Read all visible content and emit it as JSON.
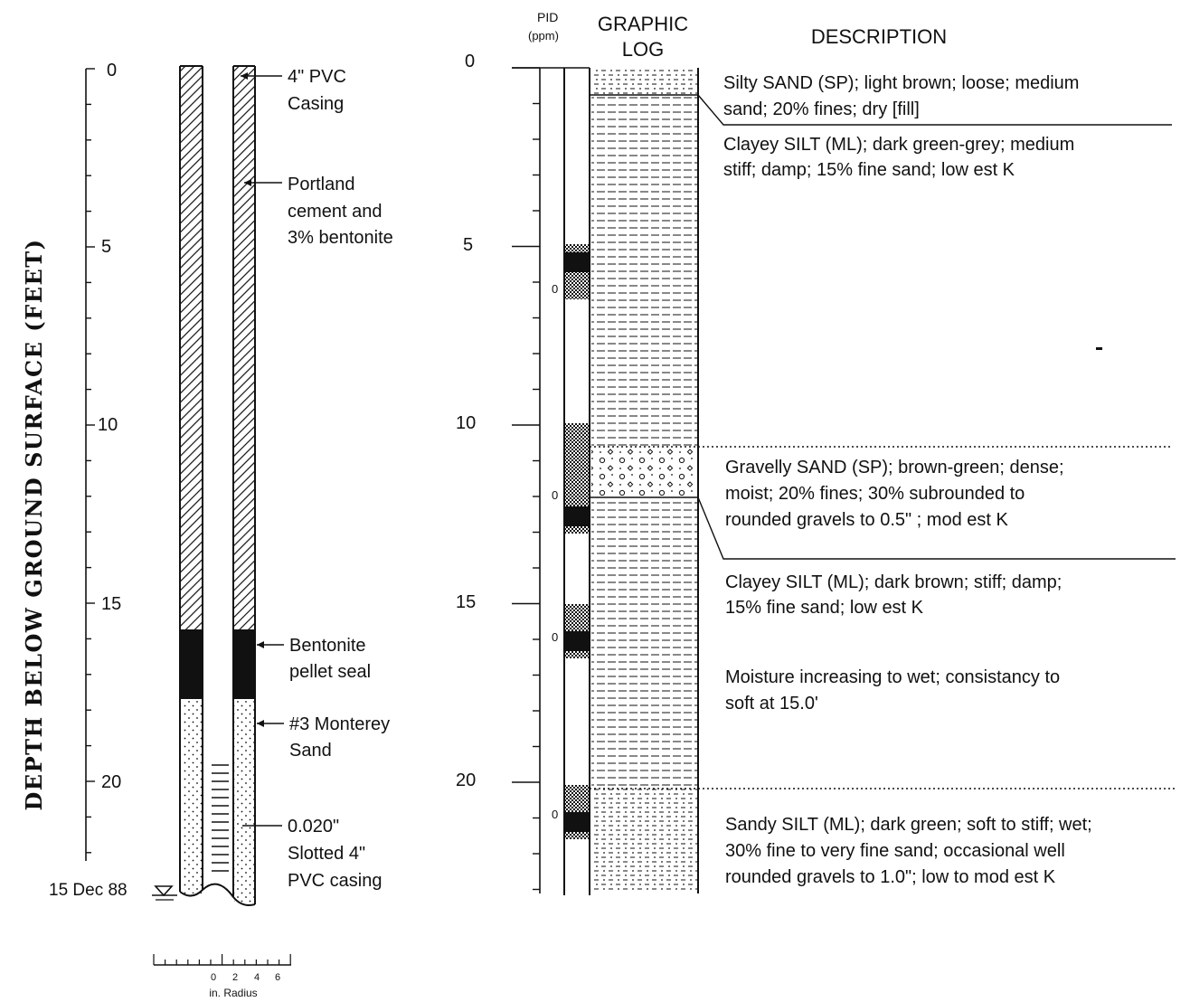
{
  "vertical_title": "DEPTH BELOW GROUND SURFACE (FEET)",
  "depth_ticks": [
    "0",
    "5",
    "10",
    "15",
    "20"
  ],
  "water_level_label": "15 Dec 88",
  "well_labels": [
    {
      "lines": [
        "4\" PVC",
        "Casing"
      ]
    },
    {
      "lines": [
        "Portland",
        "cement and",
        "3% bentonite"
      ]
    },
    {
      "lines": [
        "Bentonite",
        "pellet seal"
      ]
    },
    {
      "lines": [
        "#3 Monterey",
        "Sand"
      ]
    },
    {
      "lines": [
        "0.020\"",
        "Slotted  4\"",
        "PVC casing"
      ]
    }
  ],
  "scale_bar": {
    "ticks": [
      "0",
      "2",
      "4",
      "6"
    ],
    "label": "in. Radius"
  },
  "log_headers": {
    "pid": [
      "PID",
      "(ppm)"
    ],
    "graphic_log": [
      "GRAPHIC",
      "LOG"
    ],
    "description": "DESCRIPTION"
  },
  "pid_readings": [
    "0",
    "0",
    "0",
    "0"
  ],
  "descriptions": [
    {
      "lines": [
        "Silty SAND (SP); light brown; loose; medium",
        "sand; 20% fines; dry [fill]"
      ]
    },
    {
      "lines": [
        "Clayey SILT (ML); dark green-grey; medium",
        "stiff; damp; 15% fine sand; low est K"
      ]
    },
    {
      "lines": [
        "Gravelly SAND (SP); brown-green; dense;",
        "moist; 20% fines; 30% subrounded to",
        "rounded gravels to 0.5\" ; mod est K"
      ]
    },
    {
      "lines": [
        "Clayey SILT (ML); dark brown; stiff; damp;",
        "15% fine sand; low est K"
      ]
    },
    {
      "lines": [
        "Moisture increasing to wet; consistancy to",
        "soft at 15.0'"
      ]
    },
    {
      "lines": [
        "Sandy SILT (ML); dark green; soft to stiff; wet;",
        "30% fine to very fine sand; occasional well",
        "rounded gravels to 1.0\"; low to mod est K"
      ]
    }
  ],
  "layers": [
    {
      "name": "Silty SAND (SP)",
      "top_ft": 0,
      "bottom_ft": 0.75,
      "pattern": "silty-sand"
    },
    {
      "name": "Clayey SILT (ML)",
      "top_ft": 0.75,
      "bottom_ft": 10.6,
      "pattern": "silt"
    },
    {
      "name": "Gravelly SAND (SP)",
      "top_ft": 10.6,
      "bottom_ft": 12.0,
      "pattern": "gravel"
    },
    {
      "name": "Clayey SILT (ML)",
      "top_ft": 12.0,
      "bottom_ft": 20.0,
      "pattern": "silt"
    },
    {
      "name": "Sandy SILT (ML)",
      "top_ft": 20.0,
      "bottom_ft": 23.0,
      "pattern": "sandy-silt"
    }
  ],
  "colors": {
    "ink": "#111111",
    "background": "#ffffff"
  }
}
